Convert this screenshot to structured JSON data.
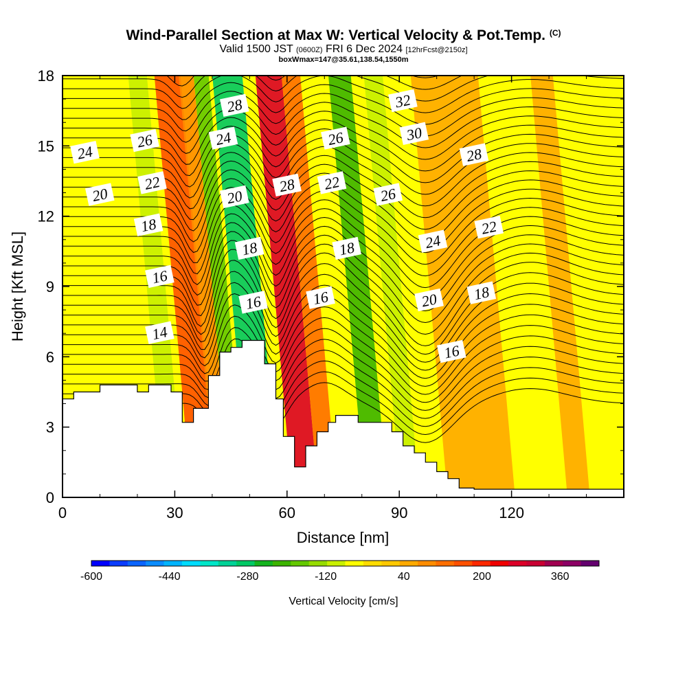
{
  "header": {
    "title": "Wind-Parallel Section at Max W: Vertical Velocity & Pot.Temp.",
    "title_tag": "(C)",
    "valid_prefix": "Valid 1500 JST",
    "valid_utc": "(0600Z)",
    "valid_date": "FRI 6 Dec 2024",
    "valid_fcst": "[12hrFcst@2150z]",
    "box_info": "boxWmax=147@35.61,138.54,1550m"
  },
  "chart_data": {
    "type": "heatmap",
    "xlabel": "Distance [nm]",
    "ylabel": "Height [Kft MSL]",
    "xlim": [
      0,
      150
    ],
    "ylim": [
      0,
      18
    ],
    "xticks": [
      "0",
      "30",
      "60",
      "90",
      "120"
    ],
    "yticks": [
      "0",
      "3",
      "6",
      "9",
      "12",
      "15",
      "18"
    ],
    "colorbar": {
      "label": "Vertical Velocity [cm/s]",
      "tick_labels": [
        "-600",
        "-440",
        "-280",
        "-120",
        "40",
        "200",
        "360"
      ],
      "tick_values": [
        -600,
        -440,
        -280,
        -120,
        40,
        200,
        360
      ],
      "range": [
        -600,
        440
      ],
      "step": 40,
      "colors": [
        "#0000ff",
        "#0a3cff",
        "#0a64ff",
        "#0a8cff",
        "#00b4ff",
        "#00dcff",
        "#00e6c8",
        "#00d296",
        "#00c864",
        "#14b41e",
        "#3cb400",
        "#64c800",
        "#96dc00",
        "#c8f000",
        "#ffff00",
        "#ffdc00",
        "#ffc800",
        "#ffaa00",
        "#ff8c00",
        "#ff6e00",
        "#ff5000",
        "#ff2800",
        "#f00000",
        "#dc0028",
        "#c80032",
        "#a00050",
        "#8c0064",
        "#64006e"
      ]
    },
    "theta_contours": {
      "units": "C",
      "interval": 1,
      "labels": [
        {
          "value": "14",
          "x": 26,
          "y": 7.0
        },
        {
          "value": "16",
          "x": 26,
          "y": 9.4
        },
        {
          "value": "18",
          "x": 23,
          "y": 11.6
        },
        {
          "value": "22",
          "x": 24,
          "y": 13.4
        },
        {
          "value": "26",
          "x": 22,
          "y": 15.2
        },
        {
          "value": "20",
          "x": 10,
          "y": 12.9
        },
        {
          "value": "24",
          "x": 6,
          "y": 14.7
        },
        {
          "value": "24",
          "x": 43,
          "y": 15.3
        },
        {
          "value": "28",
          "x": 46,
          "y": 16.7
        },
        {
          "value": "20",
          "x": 46,
          "y": 12.8
        },
        {
          "value": "18",
          "x": 50,
          "y": 10.6
        },
        {
          "value": "16",
          "x": 51,
          "y": 8.3
        },
        {
          "value": "28",
          "x": 60,
          "y": 13.3
        },
        {
          "value": "16",
          "x": 69,
          "y": 8.5
        },
        {
          "value": "18",
          "x": 76,
          "y": 10.6
        },
        {
          "value": "22",
          "x": 72,
          "y": 13.4
        },
        {
          "value": "26",
          "x": 73,
          "y": 15.3
        },
        {
          "value": "26",
          "x": 87,
          "y": 12.9
        },
        {
          "value": "32",
          "x": 91,
          "y": 16.9
        },
        {
          "value": "30",
          "x": 94,
          "y": 15.5
        },
        {
          "value": "20",
          "x": 98,
          "y": 8.4
        },
        {
          "value": "24",
          "x": 99,
          "y": 10.9
        },
        {
          "value": "16",
          "x": 104,
          "y": 6.2
        },
        {
          "value": "18",
          "x": 112,
          "y": 8.7
        },
        {
          "value": "22",
          "x": 114,
          "y": 11.5
        },
        {
          "value": "28",
          "x": 110,
          "y": 14.6
        }
      ]
    },
    "terrain_kft": [
      [
        0,
        4.2
      ],
      [
        3,
        4.2
      ],
      [
        3,
        4.5
      ],
      [
        10,
        4.5
      ],
      [
        10,
        4.8
      ],
      [
        20,
        4.8
      ],
      [
        20,
        4.5
      ],
      [
        23,
        4.5
      ],
      [
        23,
        4.8
      ],
      [
        29,
        4.8
      ],
      [
        29,
        4.5
      ],
      [
        32,
        4.5
      ],
      [
        32,
        3.2
      ],
      [
        35,
        3.2
      ],
      [
        35,
        3.8
      ],
      [
        39,
        3.8
      ],
      [
        39,
        5.2
      ],
      [
        42,
        5.2
      ],
      [
        42,
        6.2
      ],
      [
        45,
        6.2
      ],
      [
        45,
        6.4
      ],
      [
        48,
        6.4
      ],
      [
        48,
        6.7
      ],
      [
        54,
        6.7
      ],
      [
        54,
        5.7
      ],
      [
        57,
        5.7
      ],
      [
        57,
        4.2
      ],
      [
        59,
        4.2
      ],
      [
        59,
        2.6
      ],
      [
        62,
        2.6
      ],
      [
        62,
        1.3
      ],
      [
        65,
        1.3
      ],
      [
        65,
        2.2
      ],
      [
        68,
        2.2
      ],
      [
        68,
        2.8
      ],
      [
        71,
        2.8
      ],
      [
        71,
        3.2
      ],
      [
        73,
        3.2
      ],
      [
        73,
        3.5
      ],
      [
        79,
        3.5
      ],
      [
        79,
        3.2
      ],
      [
        88,
        3.2
      ],
      [
        88,
        2.8
      ],
      [
        91,
        2.8
      ],
      [
        91,
        2.2
      ],
      [
        94,
        2.2
      ],
      [
        94,
        1.9
      ],
      [
        97,
        1.9
      ],
      [
        97,
        1.5
      ],
      [
        100,
        1.5
      ],
      [
        100,
        1.1
      ],
      [
        103,
        1.1
      ],
      [
        103,
        0.8
      ],
      [
        106,
        0.8
      ],
      [
        106,
        0.4
      ],
      [
        110,
        0.4
      ],
      [
        110,
        0.35
      ],
      [
        150,
        0.35
      ]
    ],
    "w_bands": [
      {
        "x": 25,
        "w": 5,
        "value": -80
      },
      {
        "x": 33,
        "w": 7,
        "value": 200
      },
      {
        "x": 38,
        "w": 4,
        "value": 120
      },
      {
        "x": 42,
        "w": 4,
        "value": -160
      },
      {
        "x": 49,
        "w": 8,
        "value": -280
      },
      {
        "x": 60,
        "w": 7,
        "value": 320
      },
      {
        "x": 66,
        "w": 5,
        "value": 160
      },
      {
        "x": 79,
        "w": 6,
        "value": -200
      },
      {
        "x": 88,
        "w": 5,
        "value": -80
      },
      {
        "x": 107,
        "w": 18,
        "value": 80
      },
      {
        "x": 133,
        "w": 6,
        "value": 80
      }
    ]
  }
}
